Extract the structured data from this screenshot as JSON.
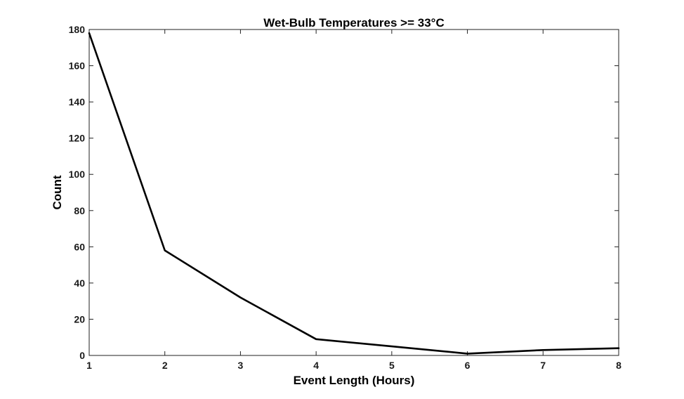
{
  "chart_data": {
    "type": "line",
    "title": "Wet-Bulb Temperatures >= 33°C",
    "xlabel": "Event Length (Hours)",
    "ylabel": "Count",
    "xlim": [
      1,
      8
    ],
    "ylim": [
      0,
      180
    ],
    "x_ticks": [
      1,
      2,
      3,
      4,
      5,
      6,
      7,
      8
    ],
    "y_ticks": [
      0,
      20,
      40,
      60,
      80,
      100,
      120,
      140,
      160,
      180
    ],
    "grid": false,
    "legend": "none",
    "series": [
      {
        "color": "#000000",
        "x": [
          1,
          2,
          3,
          4,
          5,
          6,
          7,
          8
        ],
        "values": [
          178,
          58,
          32,
          9,
          5,
          1,
          3,
          4
        ]
      }
    ]
  }
}
